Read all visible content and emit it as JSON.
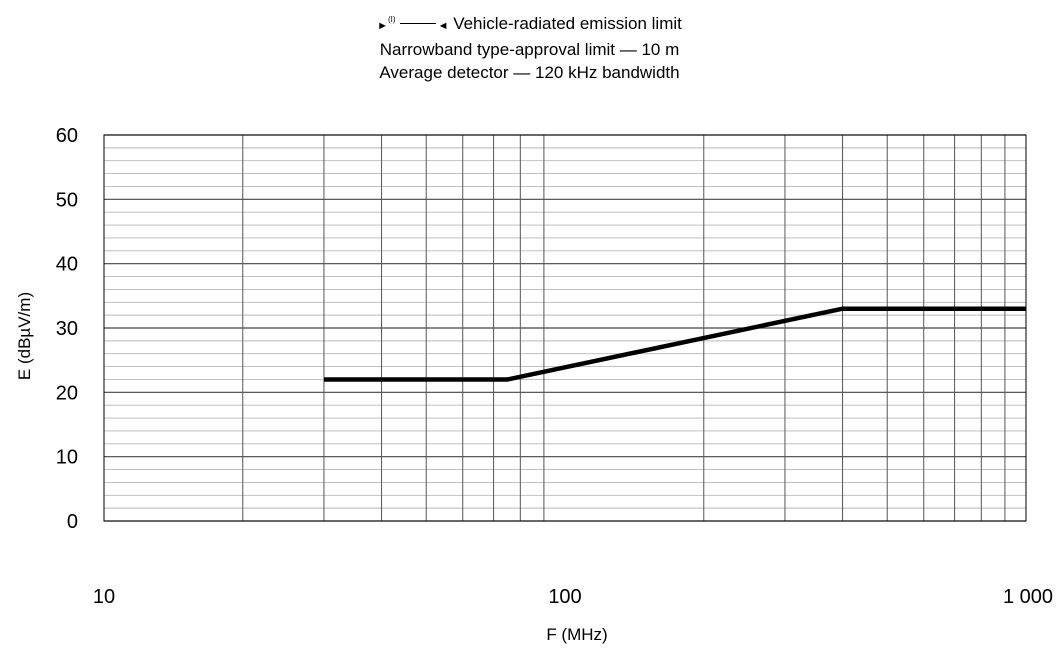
{
  "legend": {
    "marker_left": "►",
    "reference": "(I)",
    "marker_right": "◄",
    "line1": "Vehicle-radiated emission limit",
    "line2": "Narrowband type-approval limit — 10 m",
    "line3": "Average detector — 120 kHz bandwidth"
  },
  "chart_data": {
    "type": "line",
    "xlabel": "F (MHz)",
    "ylabel": "E (dBµV/m)",
    "x_scale": "log",
    "xlim": [
      10,
      1000
    ],
    "ylim": [
      0,
      60
    ],
    "x_ticks": [
      10,
      100,
      1000
    ],
    "x_tick_labels": [
      "10",
      "100",
      "1 000"
    ],
    "y_ticks": [
      0,
      10,
      20,
      30,
      40,
      50,
      60
    ],
    "y_tick_labels": [
      "0",
      "10",
      "20",
      "30",
      "40",
      "50",
      "60"
    ],
    "grid": true,
    "line_color": "#000000",
    "series": [
      {
        "x": [
          30,
          75,
          400,
          1000
        ],
        "y": [
          22,
          22,
          33,
          33
        ]
      }
    ]
  }
}
